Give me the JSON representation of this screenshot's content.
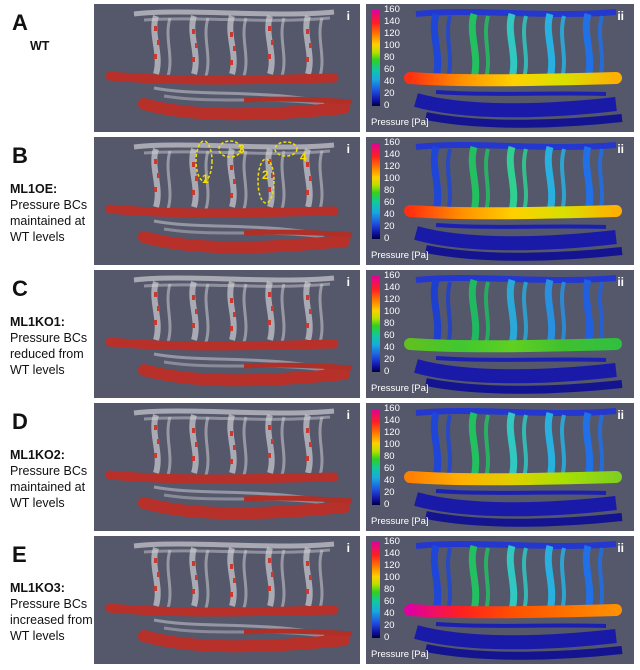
{
  "rows": [
    {
      "letter": "A",
      "name": "WT",
      "desc": "",
      "sub_i": "i",
      "sub_ii": "ii"
    },
    {
      "letter": "B",
      "name": "ML1OE:",
      "desc": "Pressure BCs maintained at WT levels",
      "sub_i": "i",
      "sub_ii": "ii",
      "annotations": [
        "1",
        "2",
        "3",
        "4"
      ]
    },
    {
      "letter": "C",
      "name": "ML1KO1:",
      "desc": "Pressure BCs reduced from WT levels",
      "sub_i": "i",
      "sub_ii": "ii"
    },
    {
      "letter": "D",
      "name": "ML1KO2:",
      "desc": "Pressure BCs maintained at WT levels",
      "sub_i": "i",
      "sub_ii": "ii"
    },
    {
      "letter": "E",
      "name": "ML1KO3:",
      "desc": "Pressure BCs increased from WT levels",
      "sub_i": "i",
      "sub_ii": "ii"
    }
  ],
  "colorbar": {
    "ticks": [
      "160",
      "140",
      "120",
      "100",
      "80",
      "60",
      "40",
      "20",
      "0"
    ],
    "title": "Pressure [Pa]"
  },
  "colors": {
    "panel_bg": "#55576b",
    "vessel_grey": "#c8c8cc",
    "rbc_red": "#b8302a",
    "low_pressure": "#1a1aa8"
  }
}
